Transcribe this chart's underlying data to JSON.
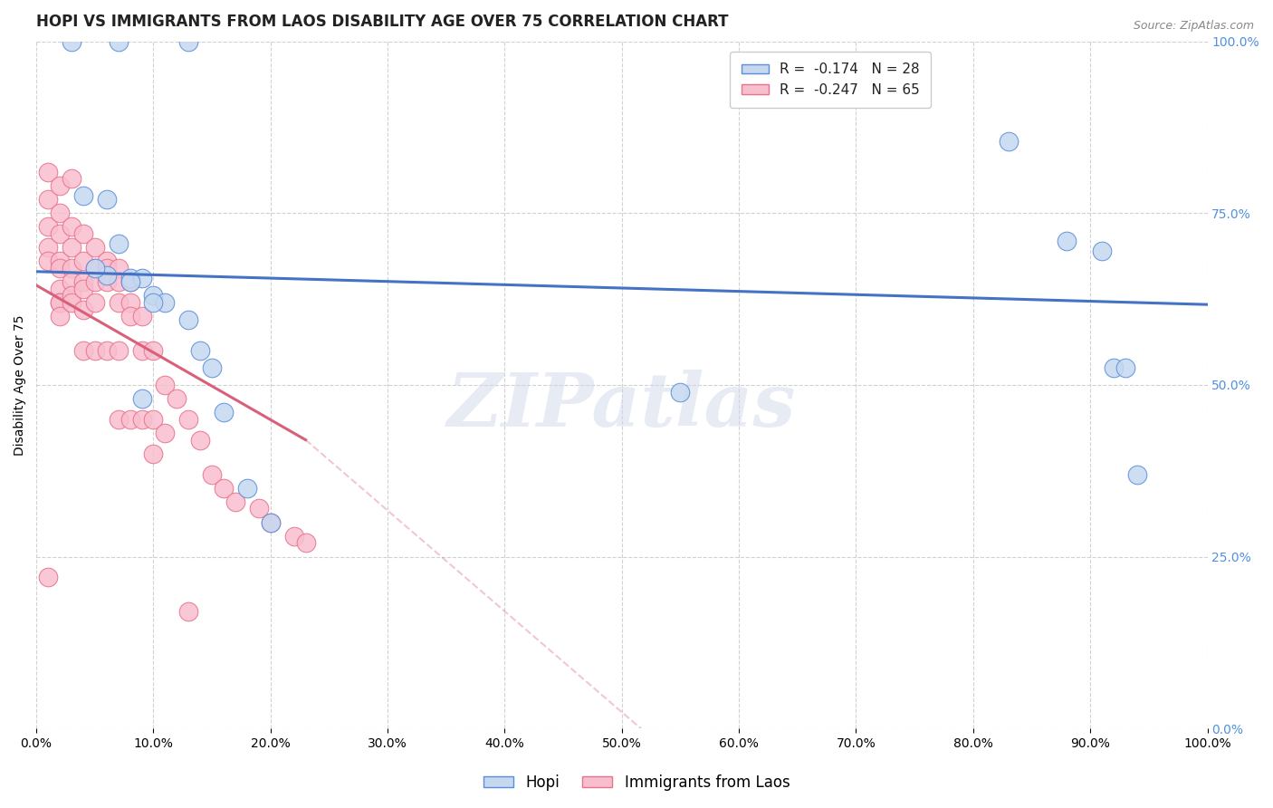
{
  "title": "HOPI VS IMMIGRANTS FROM LAOS DISABILITY AGE OVER 75 CORRELATION CHART",
  "source": "Source: ZipAtlas.com",
  "ylabel": "Disability Age Over 75",
  "xlim": [
    0,
    1.0
  ],
  "ylim": [
    0,
    1.0
  ],
  "xticks": [
    0.0,
    0.1,
    0.2,
    0.3,
    0.4,
    0.5,
    0.6,
    0.7,
    0.8,
    0.9,
    1.0
  ],
  "yticks": [
    0.0,
    0.25,
    0.5,
    0.75,
    1.0
  ],
  "hopi_R": -0.174,
  "hopi_N": 28,
  "laos_R": -0.247,
  "laos_N": 65,
  "hopi_color": "#c5d8f0",
  "laos_color": "#f8bece",
  "hopi_edge_color": "#5b8dd9",
  "laos_edge_color": "#e8728a",
  "hopi_line_color": "#4472c4",
  "laos_line_color": "#d95f7a",
  "hopi_x": [
    0.03,
    0.07,
    0.13,
    0.55,
    0.83,
    0.88,
    0.91,
    0.92,
    0.93,
    0.94,
    0.04,
    0.06,
    0.07,
    0.08,
    0.09,
    0.1,
    0.11,
    0.13,
    0.14,
    0.1,
    0.15,
    0.16,
    0.18,
    0.2,
    0.09,
    0.06,
    0.05,
    0.08
  ],
  "hopi_y": [
    1.0,
    1.0,
    1.0,
    0.49,
    0.855,
    0.71,
    0.695,
    0.525,
    0.525,
    0.37,
    0.775,
    0.66,
    0.705,
    0.655,
    0.655,
    0.63,
    0.62,
    0.595,
    0.55,
    0.62,
    0.525,
    0.46,
    0.35,
    0.3,
    0.48,
    0.77,
    0.67,
    0.65
  ],
  "laos_x": [
    0.01,
    0.01,
    0.01,
    0.01,
    0.01,
    0.02,
    0.02,
    0.02,
    0.02,
    0.02,
    0.02,
    0.02,
    0.02,
    0.02,
    0.03,
    0.03,
    0.03,
    0.03,
    0.03,
    0.03,
    0.03,
    0.04,
    0.04,
    0.04,
    0.04,
    0.04,
    0.04,
    0.05,
    0.05,
    0.05,
    0.05,
    0.05,
    0.06,
    0.06,
    0.06,
    0.06,
    0.07,
    0.07,
    0.07,
    0.07,
    0.07,
    0.08,
    0.08,
    0.08,
    0.08,
    0.09,
    0.09,
    0.09,
    0.1,
    0.1,
    0.1,
    0.11,
    0.11,
    0.12,
    0.13,
    0.13,
    0.14,
    0.15,
    0.16,
    0.17,
    0.19,
    0.2,
    0.22,
    0.23,
    0.01
  ],
  "laos_y": [
    0.81,
    0.77,
    0.73,
    0.7,
    0.68,
    0.79,
    0.75,
    0.72,
    0.68,
    0.67,
    0.64,
    0.62,
    0.62,
    0.6,
    0.8,
    0.73,
    0.7,
    0.67,
    0.65,
    0.63,
    0.62,
    0.72,
    0.68,
    0.65,
    0.64,
    0.61,
    0.55,
    0.7,
    0.67,
    0.65,
    0.62,
    0.55,
    0.68,
    0.67,
    0.65,
    0.55,
    0.67,
    0.65,
    0.62,
    0.55,
    0.45,
    0.65,
    0.62,
    0.6,
    0.45,
    0.6,
    0.55,
    0.45,
    0.55,
    0.45,
    0.4,
    0.5,
    0.43,
    0.48,
    0.45,
    0.17,
    0.42,
    0.37,
    0.35,
    0.33,
    0.32,
    0.3,
    0.28,
    0.27,
    0.22
  ],
  "hopi_trend": [
    0.0,
    1.0,
    0.665,
    0.617
  ],
  "laos_solid_trend": [
    0.0,
    0.23,
    0.645,
    0.42
  ],
  "laos_dashed_trend": [
    0.23,
    1.0,
    0.42,
    -0.71
  ],
  "background_color": "#ffffff",
  "grid_color": "#cccccc",
  "watermark_text": "ZIPatlas",
  "title_fontsize": 12,
  "axis_label_fontsize": 10,
  "tick_fontsize": 10,
  "right_tick_color": "#5090e0"
}
